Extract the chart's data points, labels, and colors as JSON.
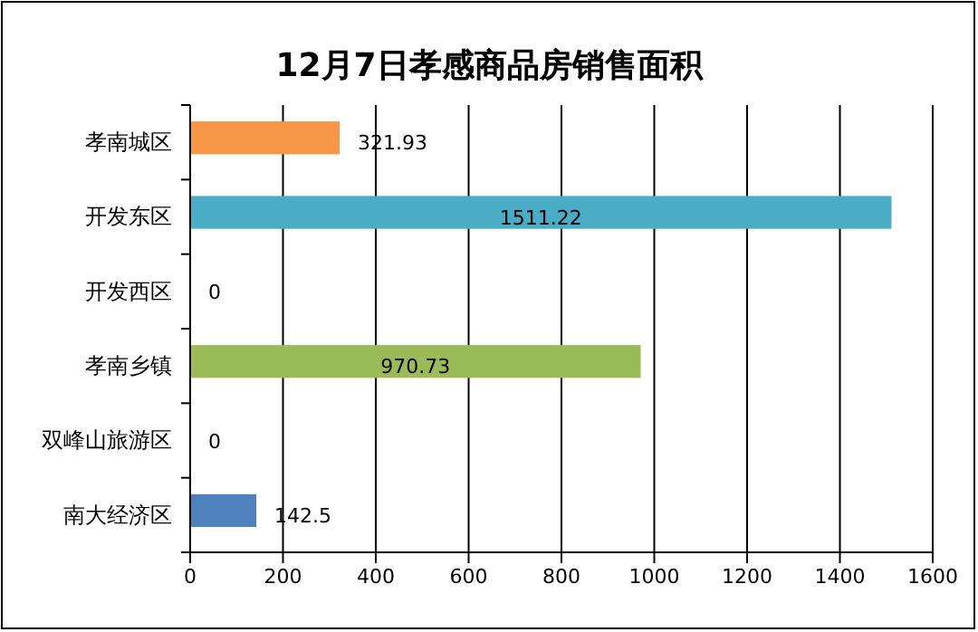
{
  "chart_data": {
    "type": "bar",
    "orientation": "horizontal",
    "title": "12月7日孝感商品房销售面积",
    "categories": [
      "孝南城区",
      "开发东区",
      "开发西区",
      "孝南乡镇",
      "双峰山旅游区",
      "南大经济区"
    ],
    "values": [
      321.93,
      1511.22,
      0,
      970.73,
      0,
      142.5
    ],
    "colors": [
      "#f79646",
      "#4bacc6",
      "#4bacc6",
      "#9bbb59",
      "#9bbb59",
      "#4f81bd"
    ],
    "xlim": [
      0,
      1600
    ],
    "xticks": [
      0,
      200,
      400,
      600,
      800,
      1000,
      1200,
      1400,
      1600
    ],
    "grid": "x",
    "data_labels": true
  }
}
